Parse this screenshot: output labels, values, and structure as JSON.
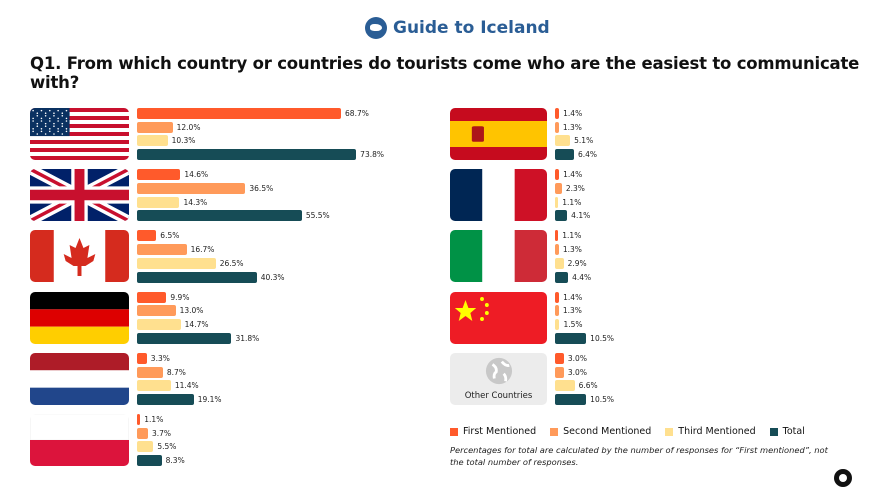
{
  "header": {
    "brand": "Guide to Iceland",
    "title": "Q1. From which country or countries do tourists come who are the easiest to communicate with?"
  },
  "chart_data": {
    "type": "bar",
    "orientation": "horizontal",
    "title": "Q1. From which country or countries do tourists come who are the easiest to communicate with?",
    "series_names": [
      "First Mentioned",
      "Second Mentioned",
      "Third Mentioned",
      "Total"
    ],
    "colors": [
      "#ff5a2b",
      "#ff9a5a",
      "#ffe08f",
      "#164c56"
    ],
    "unit": "%",
    "categories": [
      {
        "country": "United States",
        "flag": "us",
        "values": [
          68.7,
          12.0,
          10.3,
          73.8
        ]
      },
      {
        "country": "United Kingdom",
        "flag": "gb",
        "values": [
          14.6,
          36.5,
          14.3,
          55.5
        ]
      },
      {
        "country": "Canada",
        "flag": "ca",
        "values": [
          6.5,
          16.7,
          26.5,
          40.3
        ]
      },
      {
        "country": "Germany",
        "flag": "de",
        "values": [
          9.9,
          13.0,
          14.7,
          31.8
        ]
      },
      {
        "country": "Netherlands",
        "flag": "nl",
        "values": [
          3.3,
          8.7,
          11.4,
          19.1
        ]
      },
      {
        "country": "Poland",
        "flag": "pl",
        "values": [
          1.1,
          3.7,
          5.5,
          8.3
        ]
      },
      {
        "country": "Spain",
        "flag": "es",
        "values": [
          1.4,
          1.3,
          5.1,
          6.4
        ]
      },
      {
        "country": "France",
        "flag": "fr",
        "values": [
          1.4,
          2.3,
          1.1,
          4.1
        ]
      },
      {
        "country": "Italy",
        "flag": "it",
        "values": [
          1.1,
          1.3,
          2.9,
          4.4
        ]
      },
      {
        "country": "China",
        "flag": "cn",
        "values": [
          1.4,
          1.3,
          1.5,
          10.5
        ]
      },
      {
        "country": "Other Countries",
        "flag": "globe",
        "label": "Other Countries",
        "values": [
          3.0,
          3.0,
          6.6,
          10.5
        ]
      }
    ],
    "legend": [
      {
        "label": "First Mentioned",
        "color": "#ff5a2b"
      },
      {
        "label": "Second Mentioned",
        "color": "#ff9a5a"
      },
      {
        "label": "Third Mentioned",
        "color": "#ffe08f"
      },
      {
        "label": "Total",
        "color": "#164c56"
      }
    ],
    "legend_position": "bottom-right",
    "note": "Percentages for total are calculated by the number of responses for “First mentioned”, not the total number of responses."
  }
}
